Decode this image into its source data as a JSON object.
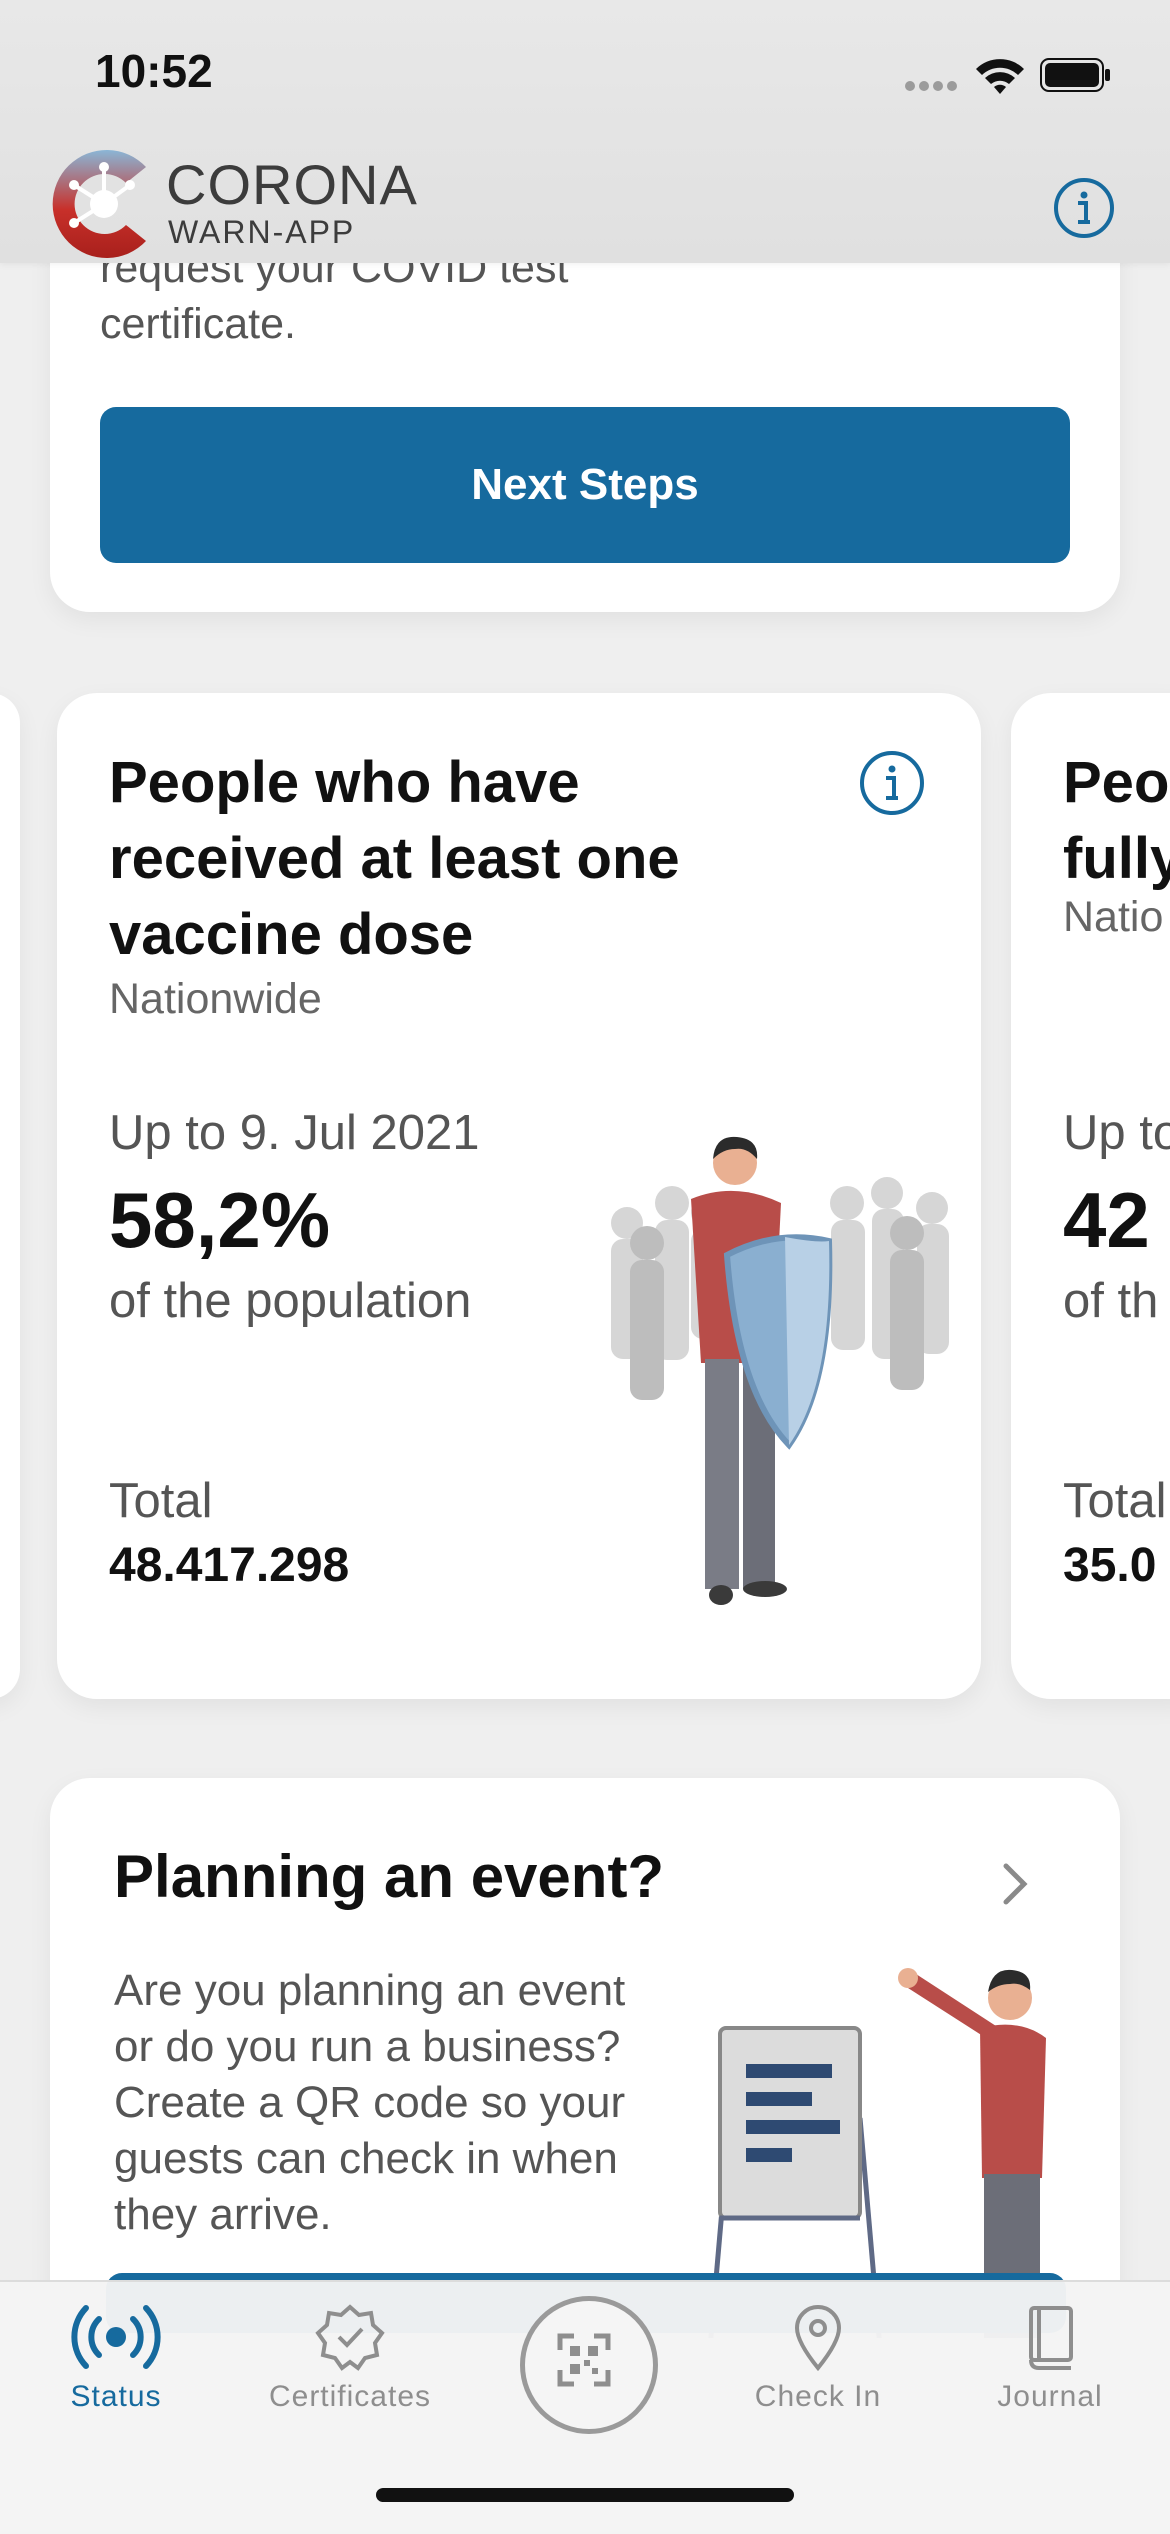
{
  "status_bar": {
    "time": "10:52"
  },
  "header": {
    "logo_title": "CORONA",
    "logo_sub": "WARN-APP"
  },
  "top_card": {
    "text": "request your COVID test certificate.",
    "button_label": "Next Steps"
  },
  "stats": {
    "main": {
      "title": "People who have received at least one vaccine dose",
      "scope": "Nationwide",
      "date": "Up to 9. Jul 2021",
      "value": "58,2%",
      "of": "of the population",
      "total_label": "Total",
      "total": "48.417.298"
    },
    "next": {
      "title_line1": "Peo",
      "title_line2": "fully",
      "scope": "Natio",
      "date": "Up to",
      "value": "42",
      "of": "of th",
      "total_label": "Total",
      "total": "35.0"
    }
  },
  "event_card": {
    "title": "Planning an event?",
    "text": "Are you planning an event or do you run a business? Create a QR code so your guests can check in when they arrive."
  },
  "tabs": [
    {
      "label": "Status",
      "icon": "status-icon",
      "active": true
    },
    {
      "label": "Certificates",
      "icon": "certificate-icon",
      "active": false
    },
    {
      "label": "",
      "icon": "qr-scan-icon",
      "active": false
    },
    {
      "label": "Check In",
      "icon": "location-pin-icon",
      "active": false
    },
    {
      "label": "Journal",
      "icon": "journal-icon",
      "active": false
    }
  ],
  "colors": {
    "primary": "#166a9e",
    "header_bg": "#e5e5e5",
    "page_bg": "#efefef",
    "card_bg": "#ffffff",
    "brand_red": "#c8302a"
  }
}
